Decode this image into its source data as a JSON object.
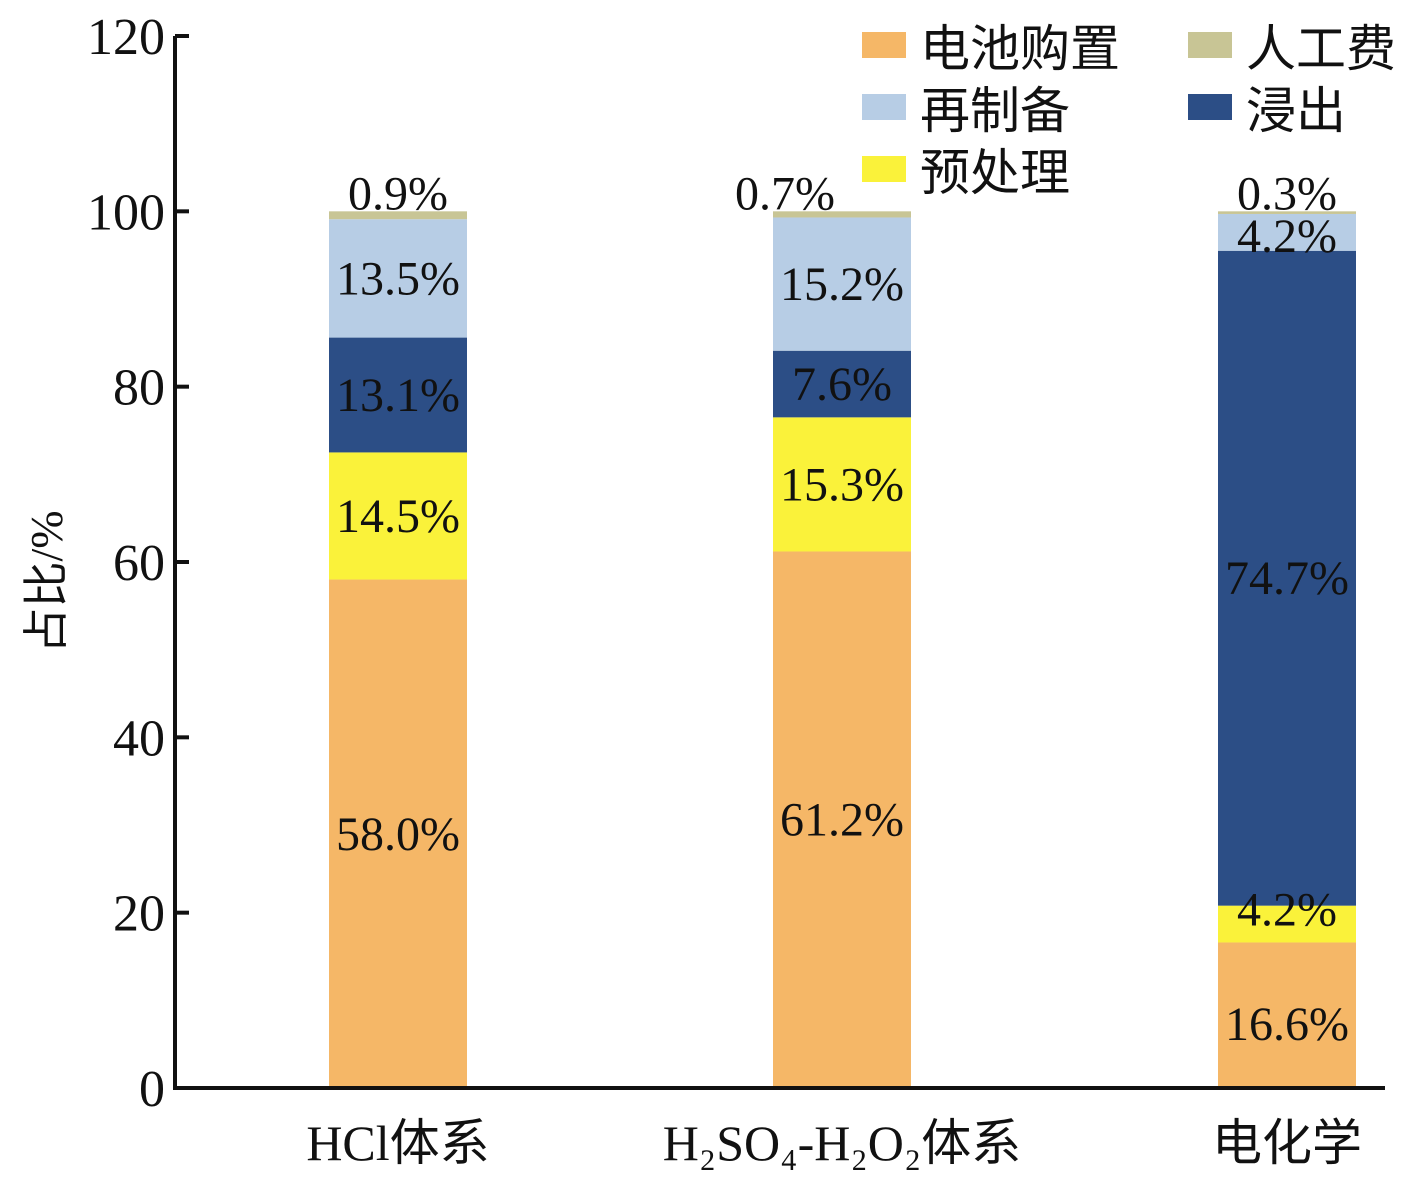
{
  "chart_data": {
    "type": "bar",
    "stacked": true,
    "title": "",
    "xlabel": "",
    "ylabel": "占比/%",
    "ylim": [
      0,
      120
    ],
    "yticks": [
      "0",
      "20",
      "40",
      "60",
      "80",
      "100",
      "120"
    ],
    "grid": false,
    "legend_position": "top-right",
    "categories": [
      "HCl体系",
      "H₂SO₄-H₂O₂体系",
      "电化学"
    ],
    "series": [
      {
        "name": "电池购置",
        "color": "#F5B767",
        "values": [
          58.0,
          61.2,
          16.6
        ],
        "labels": [
          "58.0%",
          "61.2%",
          "16.6%"
        ]
      },
      {
        "name": "预处理",
        "color": "#FAF23A",
        "values": [
          14.5,
          15.3,
          4.2
        ],
        "labels": [
          "14.5%",
          "15.3%",
          "4.2%"
        ]
      },
      {
        "name": "浸出",
        "color": "#2C4E86",
        "values": [
          13.1,
          7.6,
          74.7
        ],
        "labels": [
          "13.1%",
          "7.6%",
          "74.7%"
        ]
      },
      {
        "name": "再制备",
        "color": "#B7CDE5",
        "values": [
          13.5,
          15.2,
          4.2
        ],
        "labels": [
          "13.5%",
          "15.2%",
          "4.2%"
        ]
      },
      {
        "name": "人工费",
        "color": "#C8C595",
        "values": [
          0.9,
          0.7,
          0.3
        ],
        "labels": [
          "0.9%",
          "0.7%",
          "0.3%"
        ]
      }
    ],
    "legend_order": [
      "电池购置",
      "人工费",
      "再制备",
      "浸出",
      "预处理"
    ]
  }
}
